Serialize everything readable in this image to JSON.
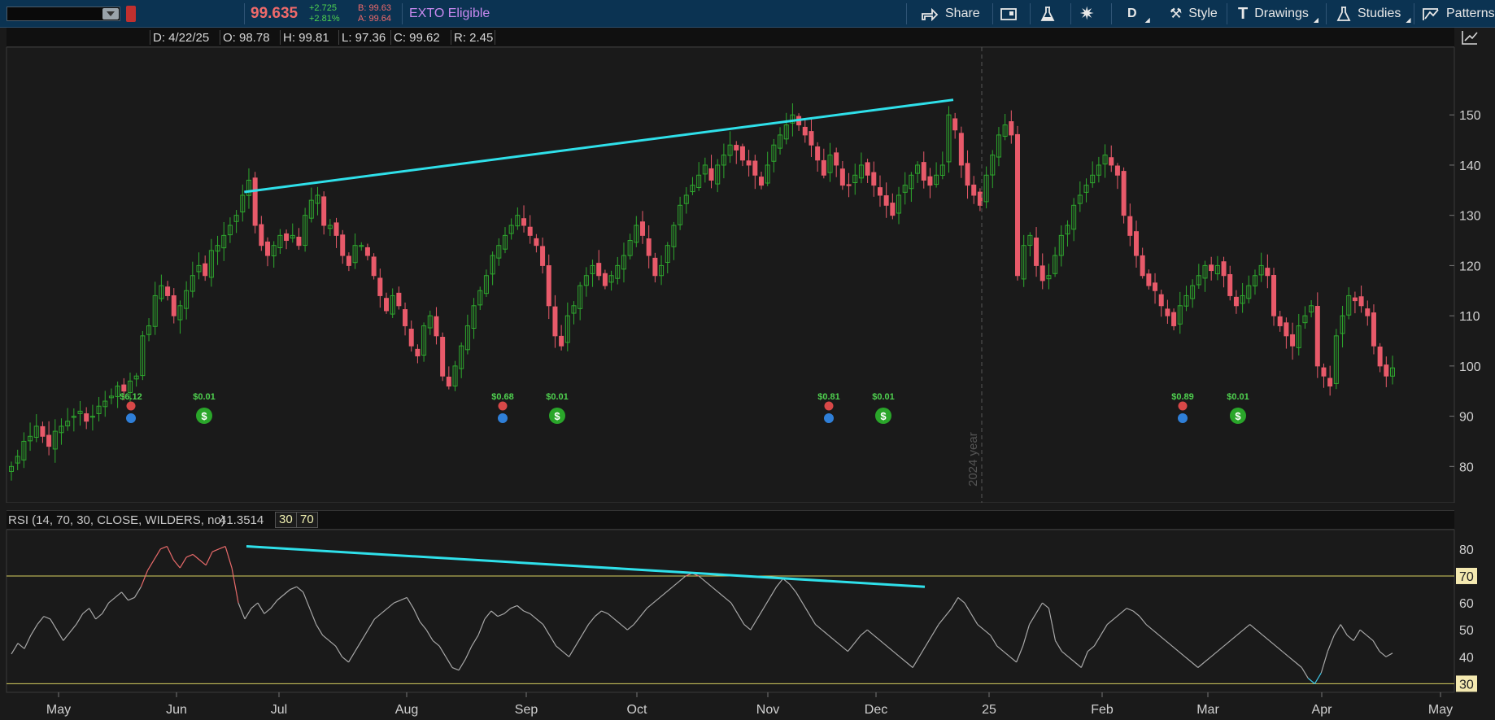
{
  "toolbar": {
    "price": "99.635",
    "change_abs": "+2.725",
    "change_pct": "+2.81%",
    "bid": "B: 99.63",
    "ask": "A: 99.64",
    "exto": "EXTO Eligible",
    "share": "Share",
    "period": "D",
    "style": "Style",
    "drawings": "Drawings",
    "studies": "Studies",
    "patterns": "Patterns"
  },
  "ohlc": {
    "date": "D: 4/22/25",
    "open": "O: 98.78",
    "high": "H: 99.81",
    "low": "L: 97.36",
    "close": "C: 99.62",
    "range": "R: 2.45"
  },
  "rsi_header": {
    "label": "RSI (14, 70, 30, CLOSE, WILDERS, no)",
    "value": "41.3514",
    "lower": "30",
    "upper": "70"
  },
  "colors": {
    "up": "#2ea82e",
    "down": "#e85a6a",
    "trendline": "#2fe0ea",
    "rsi_line": "#a8a8a8",
    "rsi_overbought": "#e86a6a",
    "rsi_oversold": "#3fc8e8",
    "level_line": "#d8d060"
  },
  "chart_data": [
    {
      "type": "candlestick",
      "y_ticks": [
        80,
        90,
        100,
        110,
        120,
        130,
        140,
        150
      ],
      "ylim": [
        76,
        157
      ],
      "x_tick_labels": [
        "May",
        "Jun",
        "Jul",
        "Aug",
        "Sep",
        "Oct",
        "Nov",
        "Dec",
        "25",
        "Feb",
        "Mar",
        "Apr",
        "May"
      ],
      "year_divider_label": "2024 year",
      "close_series": [
        80,
        82,
        85,
        86,
        88,
        86,
        84,
        87,
        88,
        89,
        90,
        91,
        89,
        90,
        92,
        93,
        94,
        96,
        95,
        97,
        98,
        106,
        108,
        114,
        116,
        114,
        110,
        112,
        115,
        118,
        120,
        118,
        123,
        124,
        126,
        128,
        130,
        134,
        137,
        128,
        124,
        122,
        124,
        126,
        125,
        126,
        124,
        130,
        133,
        134,
        128,
        128,
        126,
        122,
        120,
        124,
        124,
        122,
        118,
        114,
        111,
        114,
        112,
        108,
        104,
        102,
        108,
        110,
        106,
        98,
        96,
        100,
        104,
        108,
        112,
        115,
        118,
        122,
        124,
        126,
        128,
        130,
        128,
        126,
        124,
        120,
        112,
        106,
        104,
        110,
        112,
        116,
        118,
        120,
        118,
        116,
        118,
        120,
        122,
        125,
        128,
        126,
        122,
        118,
        120,
        124,
        128,
        132,
        134,
        136,
        138,
        140,
        137,
        140,
        142,
        144,
        143,
        141,
        140,
        138,
        136,
        140,
        144,
        146,
        148,
        150,
        148,
        146,
        144,
        141,
        138,
        142,
        140,
        136,
        136,
        138,
        140,
        138,
        136,
        134,
        132,
        130,
        134,
        136,
        138,
        140,
        137,
        136,
        138,
        140,
        150,
        147,
        140,
        136,
        134,
        132,
        138,
        142,
        146,
        148,
        146,
        118,
        124,
        126,
        120,
        117,
        118,
        122,
        126,
        128,
        132,
        134,
        136,
        138,
        140,
        142,
        140,
        138,
        130,
        126,
        122,
        118,
        116,
        115,
        112,
        110,
        108,
        112,
        114,
        116,
        118,
        120,
        119,
        120,
        118,
        114,
        112,
        114,
        116,
        118,
        120,
        118,
        110,
        108,
        106,
        104,
        108,
        110,
        112,
        100,
        98,
        96,
        106,
        110,
        114,
        113,
        112,
        110,
        104,
        100,
        98,
        99.62
      ],
      "trendline_label": "",
      "dividend_labels": [
        "$6.12",
        "$0.68",
        "$0.81",
        "$0.89"
      ],
      "other_event_labels": [
        "$0.01",
        "$0.01",
        "$0.01",
        "$0.01"
      ]
    },
    {
      "type": "line",
      "name": "RSI (14, 70, 30, CLOSE, WILDERS, no)",
      "y_ticks": [
        30,
        40,
        50,
        60,
        70,
        80
      ],
      "ylim": [
        28,
        86
      ],
      "levels": [
        30,
        70
      ],
      "values": [
        41,
        45,
        43,
        48,
        52,
        55,
        54,
        50,
        46,
        49,
        52,
        56,
        58,
        54,
        56,
        60,
        62,
        64,
        61,
        62,
        66,
        72,
        76,
        80,
        81,
        76,
        73,
        77,
        78,
        76,
        74,
        79,
        80,
        81,
        73,
        60,
        54,
        58,
        60,
        56,
        58,
        61,
        63,
        65,
        66,
        64,
        58,
        52,
        48,
        46,
        44,
        40,
        38,
        42,
        46,
        50,
        54,
        56,
        58,
        60,
        61,
        62,
        58,
        53,
        50,
        46,
        44,
        40,
        36,
        35,
        39,
        44,
        48,
        54,
        57,
        55,
        56,
        58,
        59,
        57,
        56,
        54,
        52,
        48,
        44,
        42,
        40,
        44,
        48,
        52,
        55,
        57,
        56,
        54,
        52,
        50,
        52,
        55,
        58,
        60,
        62,
        64,
        66,
        68,
        70,
        71,
        70,
        68,
        66,
        64,
        62,
        60,
        56,
        52,
        50,
        54,
        58,
        62,
        66,
        69,
        67,
        64,
        60,
        56,
        52,
        50,
        48,
        46,
        44,
        42,
        45,
        48,
        50,
        48,
        46,
        44,
        42,
        40,
        38,
        36,
        40,
        44,
        48,
        52,
        55,
        58,
        62,
        60,
        56,
        52,
        50,
        48,
        44,
        42,
        40,
        38,
        44,
        52,
        56,
        60,
        58,
        46,
        42,
        40,
        38,
        36,
        42,
        44,
        48,
        52,
        54,
        56,
        58,
        57,
        55,
        52,
        50,
        48,
        46,
        44,
        42,
        40,
        38,
        36,
        38,
        40,
        42,
        44,
        46,
        48,
        50,
        52,
        50,
        48,
        46,
        44,
        42,
        40,
        38,
        36,
        32,
        30,
        34,
        42,
        48,
        52,
        48,
        46,
        50,
        48,
        46,
        42,
        40,
        41.35
      ]
    }
  ]
}
